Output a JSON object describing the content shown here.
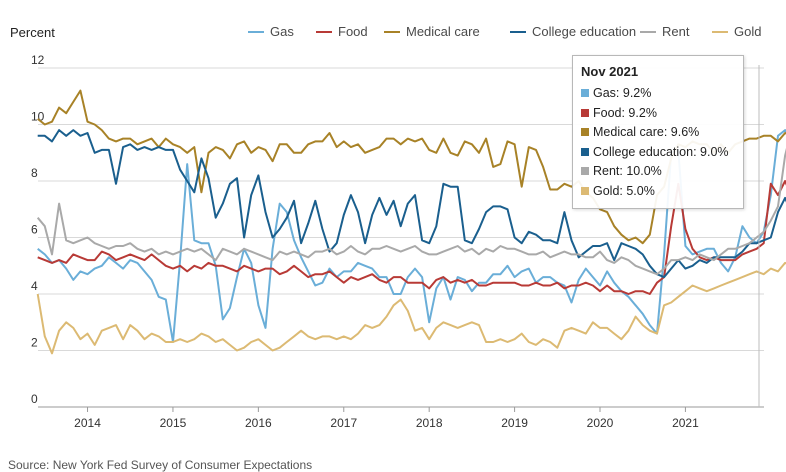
{
  "chart_data": {
    "type": "line",
    "ylabel": "Percent",
    "ylim": [
      0,
      12
    ],
    "yticks": [
      "0",
      "2",
      "4",
      "6",
      "8",
      "10",
      "12"
    ],
    "xlim": [
      2013.42,
      2021.92
    ],
    "xticks": [
      "2014",
      "2015",
      "2016",
      "2017",
      "2018",
      "2019",
      "2020",
      "2021"
    ],
    "grid": true,
    "legend": "top",
    "source": "Source: New York Fed Survey of Consumer Expectations",
    "series": [
      {
        "name": "Gas",
        "color": "#6aaed8",
        "values": [
          5.6,
          5.4,
          5.1,
          5.2,
          4.9,
          4.5,
          4.8,
          4.7,
          4.9,
          5.0,
          5.3,
          5.1,
          4.9,
          5.2,
          5.1,
          4.8,
          4.5,
          3.9,
          3.8,
          2.3,
          5.2,
          8.6,
          5.9,
          5.8,
          5.8,
          5.0,
          3.1,
          3.5,
          4.6,
          5.6,
          5.1,
          3.6,
          2.8,
          5.6,
          7.2,
          6.9,
          5.9,
          5.3,
          4.8,
          4.3,
          4.4,
          4.9,
          4.6,
          4.8,
          4.8,
          5.1,
          5.0,
          4.9,
          4.6,
          4.6,
          4.0,
          4.0,
          4.6,
          4.9,
          4.6,
          3.0,
          4.2,
          4.6,
          3.8,
          4.6,
          4.5,
          4.1,
          4.4,
          4.4,
          4.7,
          4.7,
          5.0,
          4.6,
          4.8,
          4.9,
          4.4,
          4.6,
          4.6,
          4.4,
          4.3,
          3.7,
          4.5,
          4.9,
          4.6,
          4.3,
          4.8,
          4.4,
          4.1,
          3.9,
          3.6,
          3.3,
          2.9,
          2.6,
          5.4,
          9.0,
          9.1,
          5.7,
          5.4,
          5.5,
          5.6,
          5.6,
          5.1,
          4.8,
          5.3,
          6.4,
          6.0,
          5.8,
          6.2,
          7.5,
          9.6,
          9.8,
          9.4,
          9.6,
          9.2,
          9.2,
          9.3,
          9.2
        ]
      },
      {
        "name": "Food",
        "color": "#b83a36",
        "values": [
          5.3,
          5.2,
          5.1,
          5.2,
          5.1,
          5.4,
          5.3,
          5.2,
          5.2,
          5.5,
          5.4,
          5.2,
          5.3,
          5.4,
          5.3,
          5.2,
          5.4,
          5.2,
          5.0,
          4.9,
          5.0,
          4.8,
          5.0,
          4.9,
          5.1,
          5.0,
          5.0,
          4.9,
          4.8,
          5.0,
          4.9,
          4.8,
          4.9,
          4.9,
          4.7,
          4.8,
          5.0,
          4.8,
          4.6,
          4.7,
          4.7,
          4.8,
          4.6,
          4.4,
          4.6,
          4.5,
          4.6,
          4.7,
          4.5,
          4.4,
          4.6,
          4.6,
          4.4,
          4.4,
          4.4,
          4.2,
          4.5,
          4.6,
          4.4,
          4.5,
          4.4,
          4.5,
          4.3,
          4.3,
          4.4,
          4.4,
          4.4,
          4.4,
          4.3,
          4.3,
          4.4,
          4.3,
          4.3,
          4.4,
          4.2,
          4.3,
          4.3,
          4.4,
          4.3,
          4.1,
          4.3,
          4.1,
          4.1,
          4.0,
          4.1,
          4.1,
          4.0,
          4.4,
          4.6,
          6.4,
          7.9,
          6.3,
          5.6,
          5.3,
          5.2,
          5.3,
          5.2,
          5.2,
          5.2,
          5.4,
          5.5,
          5.6,
          5.8,
          7.9,
          7.5,
          8.0,
          7.4,
          7.0,
          7.4,
          9.1,
          8.9,
          9.2
        ]
      },
      {
        "name": "Medical care",
        "color": "#a88227",
        "values": [
          10.2,
          10.0,
          10.1,
          10.6,
          10.4,
          10.8,
          11.2,
          10.1,
          10.0,
          9.8,
          9.5,
          9.4,
          9.5,
          9.5,
          9.3,
          9.4,
          9.5,
          9.2,
          9.5,
          9.3,
          9.2,
          9.0,
          9.2,
          7.6,
          9.0,
          9.2,
          9.1,
          8.8,
          9.3,
          9.4,
          9.0,
          9.2,
          9.1,
          8.7,
          9.3,
          9.3,
          9.0,
          9.0,
          9.3,
          9.4,
          9.4,
          9.7,
          9.2,
          9.4,
          9.2,
          9.3,
          9.0,
          9.1,
          9.2,
          9.5,
          9.5,
          9.3,
          9.5,
          9.4,
          9.5,
          9.1,
          9.0,
          9.5,
          9.0,
          8.9,
          9.4,
          9.3,
          9.0,
          9.5,
          8.5,
          8.6,
          9.4,
          9.3,
          7.8,
          9.2,
          9.1,
          8.5,
          7.7,
          7.7,
          7.9,
          7.8,
          8.0,
          7.6,
          7.4,
          7.0,
          6.9,
          6.4,
          6.1,
          5.9,
          6.0,
          5.8,
          6.1,
          7.5,
          7.8,
          8.8,
          9.3,
          9.2,
          9.4,
          9.3,
          9.3,
          9.0,
          9.3,
          9.0,
          9.3,
          9.4,
          9.5,
          9.5,
          9.6,
          9.6,
          9.4,
          9.7,
          9.6,
          9.4,
          9.4,
          9.6,
          9.5,
          9.6
        ]
      },
      {
        "name": "College education",
        "color": "#1a5f8e",
        "values": [
          9.6,
          9.6,
          9.4,
          9.8,
          9.6,
          9.8,
          9.6,
          9.7,
          9.0,
          9.1,
          9.1,
          7.9,
          9.2,
          9.3,
          9.1,
          9.2,
          9.1,
          9.2,
          9.1,
          9.1,
          8.4,
          8.0,
          7.6,
          8.8,
          8.1,
          6.7,
          7.2,
          7.9,
          8.1,
          6.0,
          7.5,
          8.2,
          6.9,
          6.0,
          6.3,
          6.7,
          7.3,
          5.8,
          6.5,
          7.3,
          6.3,
          5.5,
          5.8,
          6.8,
          7.5,
          6.9,
          5.8,
          6.8,
          7.4,
          6.8,
          7.3,
          6.4,
          7.2,
          7.5,
          5.9,
          5.8,
          6.4,
          7.9,
          7.8,
          7.8,
          5.9,
          5.8,
          6.3,
          6.9,
          7.1,
          7.1,
          7.0,
          6.0,
          5.8,
          6.2,
          6.1,
          5.9,
          5.9,
          5.8,
          6.9,
          5.9,
          5.3,
          5.5,
          5.7,
          5.7,
          5.8,
          5.2,
          5.8,
          5.7,
          5.6,
          5.4,
          5.0,
          4.7,
          4.6,
          4.9,
          5.2,
          4.9,
          5.0,
          5.2,
          5.1,
          5.3,
          5.3,
          5.3,
          5.3,
          5.5,
          5.8,
          5.8,
          5.9,
          6.0,
          6.9,
          7.4,
          6.8,
          6.1,
          6.3,
          5.9,
          6.1,
          9.0
        ]
      },
      {
        "name": "Rent",
        "color": "#a9a9a9",
        "values": [
          6.7,
          6.4,
          5.4,
          7.2,
          5.9,
          5.8,
          5.9,
          6.0,
          5.8,
          5.7,
          5.6,
          5.7,
          5.7,
          5.8,
          5.6,
          5.5,
          5.6,
          5.4,
          5.5,
          5.4,
          5.5,
          5.6,
          5.5,
          5.6,
          5.4,
          5.2,
          5.6,
          5.5,
          5.4,
          5.6,
          5.5,
          5.4,
          5.3,
          5.2,
          5.5,
          5.4,
          5.5,
          5.4,
          5.3,
          5.5,
          5.5,
          5.6,
          5.4,
          5.5,
          5.7,
          5.5,
          5.4,
          5.6,
          5.6,
          5.7,
          5.6,
          5.5,
          5.6,
          5.7,
          5.5,
          5.4,
          5.4,
          5.5,
          5.6,
          5.7,
          5.5,
          5.6,
          5.4,
          5.6,
          5.5,
          5.7,
          5.6,
          5.6,
          5.5,
          5.4,
          5.4,
          5.5,
          5.3,
          5.4,
          5.5,
          5.4,
          5.4,
          5.3,
          5.3,
          5.5,
          5.2,
          5.1,
          5.3,
          5.2,
          5.0,
          4.9,
          4.8,
          4.7,
          4.9,
          5.2,
          5.2,
          5.3,
          5.2,
          5.4,
          5.3,
          5.2,
          5.4,
          5.6,
          5.6,
          5.7,
          5.8,
          6.0,
          6.2,
          6.6,
          7.1,
          8.9,
          9.9,
          9.7,
          10.0,
          9.8,
          10.1,
          10.0
        ]
      },
      {
        "name": "Gold",
        "color": "#dcba73",
        "values": [
          4.0,
          2.5,
          1.9,
          2.7,
          3.0,
          2.8,
          2.4,
          2.6,
          2.2,
          2.7,
          2.8,
          2.9,
          2.4,
          2.9,
          2.7,
          2.4,
          2.6,
          2.5,
          2.3,
          2.3,
          2.4,
          2.3,
          2.4,
          2.6,
          2.5,
          2.3,
          2.4,
          2.2,
          2.0,
          2.1,
          2.3,
          2.4,
          2.2,
          2.0,
          2.1,
          2.3,
          2.5,
          2.7,
          2.5,
          2.4,
          2.5,
          2.5,
          2.4,
          2.5,
          2.4,
          2.6,
          2.9,
          2.8,
          2.9,
          3.2,
          3.6,
          3.8,
          3.4,
          2.7,
          2.8,
          2.4,
          2.8,
          3.0,
          2.9,
          2.8,
          2.9,
          3.0,
          2.9,
          2.3,
          2.3,
          2.4,
          2.3,
          2.4,
          2.6,
          2.3,
          2.2,
          2.4,
          2.3,
          2.1,
          2.7,
          2.8,
          2.7,
          2.6,
          3.0,
          2.8,
          2.8,
          2.6,
          2.4,
          2.7,
          3.2,
          2.9,
          2.7,
          2.6,
          3.6,
          3.7,
          3.9,
          4.1,
          4.3,
          4.2,
          4.1,
          4.2,
          4.3,
          4.4,
          4.5,
          4.6,
          4.7,
          4.8,
          4.7,
          4.9,
          4.8,
          5.1,
          5.0,
          4.9,
          5.0,
          5.0,
          5.1,
          5.0
        ]
      }
    ]
  },
  "tooltip": {
    "title": "Nov 2021",
    "rows": [
      {
        "name": "Gas",
        "value": "9.2%",
        "color": "#6aaed8"
      },
      {
        "name": "Food",
        "value": "9.2%",
        "color": "#b83a36"
      },
      {
        "name": "Medical care",
        "value": "9.6%",
        "color": "#a88227"
      },
      {
        "name": "College education",
        "value": "9.0%",
        "color": "#1a5f8e"
      },
      {
        "name": "Rent",
        "value": "10.0%",
        "color": "#a9a9a9"
      },
      {
        "name": "Gold",
        "value": "5.0%",
        "color": "#dcba73"
      }
    ]
  }
}
